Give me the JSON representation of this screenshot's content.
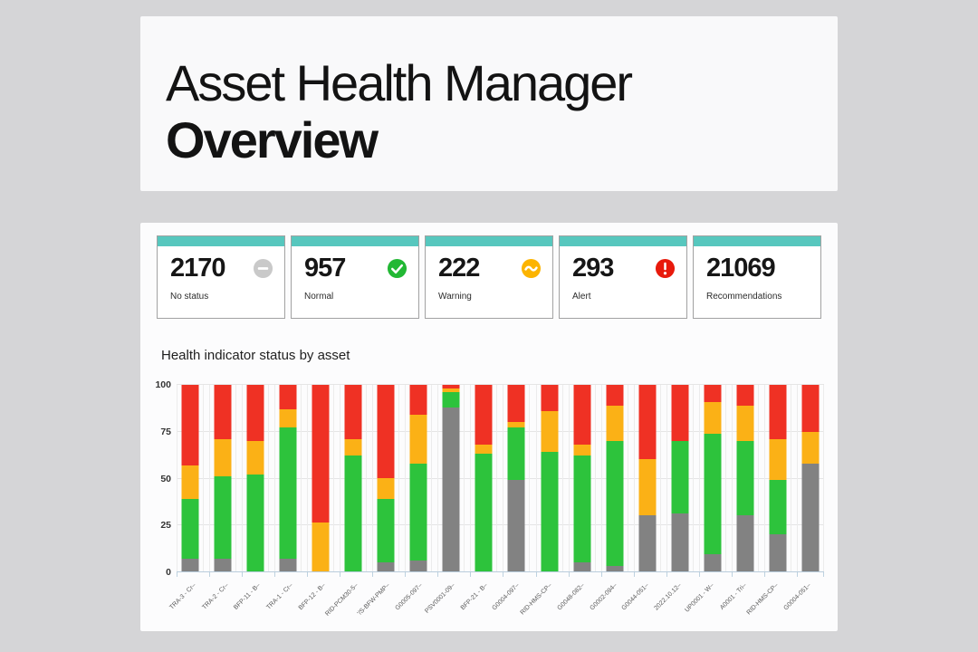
{
  "header": {
    "title": "Asset Health Manager",
    "subtitle": "Overview"
  },
  "summary_cards": [
    {
      "value": "2170",
      "label": "No status",
      "icon": "minus-circle-icon",
      "icon_color": "#c9c9c9"
    },
    {
      "value": "957",
      "label": "Normal",
      "icon": "check-circle-icon",
      "icon_color": "#22b834"
    },
    {
      "value": "222",
      "label": "Warning",
      "icon": "tilde-circle-icon",
      "icon_color": "#fcb400"
    },
    {
      "value": "293",
      "label": "Alert",
      "icon": "exclamation-circle-icon",
      "icon_color": "#e81a0c"
    },
    {
      "value": "21069",
      "label": "Recommendations",
      "icon": null,
      "icon_color": null
    }
  ],
  "chart_data": {
    "type": "bar",
    "stacked": true,
    "title": "Health indicator status by asset",
    "xlabel": "",
    "ylabel": "",
    "ylim": [
      0,
      100
    ],
    "yticks": [
      0,
      25,
      50,
      75,
      100
    ],
    "grid": true,
    "legend": false,
    "categories": [
      "TRA-3 - Cr–",
      "TRA-2 - Cr–",
      "BFP-11 - B–",
      "TRA-1 - Cr–",
      "BFP-12 - B–",
      "RID-PCM30-5–",
      "'/S-BFW-PMP–",
      "G0005-097–",
      "PSV0001-09–",
      "BFP-21 - B–",
      "G0004-097–",
      "RID-HMS-CP–",
      "G0048-082–",
      "G0002-094–",
      "G0044-051–",
      "2022.10.12–",
      "UP0001 - W–",
      "A0001 - Tri–",
      "RID-HMS-CP–",
      "G0004-051–"
    ],
    "series": [
      {
        "name": "No status",
        "color": "#828282",
        "values": [
          7,
          7,
          0,
          7,
          0,
          0,
          5,
          6,
          88,
          0,
          49,
          0,
          5,
          3,
          30,
          31,
          9,
          30,
          20,
          58
        ]
      },
      {
        "name": "Normal",
        "color": "#2dc33c",
        "values": [
          32,
          44,
          52,
          70,
          0,
          62,
          34,
          52,
          8,
          63,
          28,
          64,
          57,
          67,
          0,
          39,
          65,
          40,
          29,
          0
        ]
      },
      {
        "name": "Warning",
        "color": "#fbb116",
        "values": [
          18,
          20,
          18,
          10,
          26,
          9,
          11,
          26,
          2,
          5,
          3,
          22,
          6,
          19,
          30,
          0,
          17,
          19,
          22,
          17
        ]
      },
      {
        "name": "Alert",
        "color": "#ef3124",
        "values": [
          43,
          29,
          30,
          13,
          74,
          29,
          50,
          16,
          2,
          32,
          20,
          14,
          32,
          11,
          40,
          30,
          9,
          11,
          29,
          25
        ]
      }
    ]
  },
  "colors": {
    "page_background": "#d5d5d7",
    "panel_background": "#fcfcfd",
    "card_accent": "#57c7be",
    "card_border": "#a2a2a2",
    "axis": "#b9cddd",
    "gridline": "#e5e5e5"
  }
}
